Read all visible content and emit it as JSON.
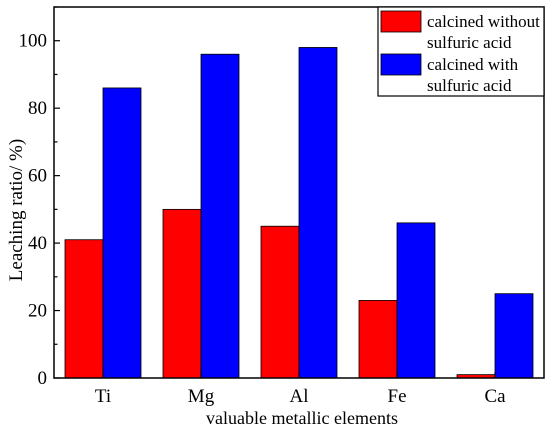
{
  "chart_data": {
    "type": "bar",
    "categories": [
      "Ti",
      "Mg",
      "Al",
      "Fe",
      "Ca"
    ],
    "series": [
      {
        "name": "calcined without sulfuric acid",
        "name_lines": [
          "calcined without",
          "sulfuric acid"
        ],
        "color": "#ff0000",
        "values": [
          41,
          50,
          45,
          23,
          1
        ]
      },
      {
        "name": "calcined with sulfuric acid",
        "name_lines": [
          "calcined with",
          "sulfuric acid"
        ],
        "color": "#0000ff",
        "values": [
          86,
          96,
          98,
          46,
          25
        ]
      }
    ],
    "title": "",
    "xlabel": "valuable metallic elements",
    "ylabel": "Leaching ratio/ %)",
    "ylim": [
      0,
      110
    ],
    "yticks": [
      0,
      20,
      40,
      60,
      80,
      100
    ],
    "grid": false,
    "legend_position": "top-right"
  }
}
